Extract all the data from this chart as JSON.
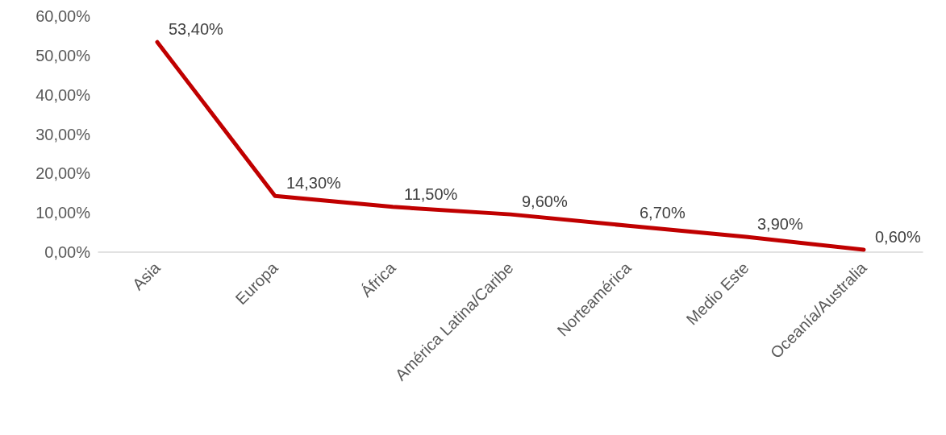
{
  "chart_data": {
    "type": "line",
    "categories": [
      "Asia",
      "Europa",
      "África",
      "América Latina/Caribe",
      "Norteamérica",
      "Medio Este",
      "Oceanía/Australia"
    ],
    "values": [
      53.4,
      14.3,
      11.5,
      9.6,
      6.7,
      3.9,
      0.6
    ],
    "value_labels": [
      "53,40%",
      "14,30%",
      "11,50%",
      "9,60%",
      "6,70%",
      "3,90%",
      "0,60%"
    ],
    "color": "#c00000",
    "ylim": [
      0,
      60
    ],
    "yticks": [
      {
        "value": 0,
        "label": "0,00%"
      },
      {
        "value": 10,
        "label": "10,00%"
      },
      {
        "value": 20,
        "label": "20,00%"
      },
      {
        "value": 30,
        "label": "30,00%"
      },
      {
        "value": 40,
        "label": "40,00%"
      },
      {
        "value": 50,
        "label": "50,00%"
      },
      {
        "value": 60,
        "label": "60,00%"
      }
    ],
    "grid": false,
    "marker": "none",
    "line_style": "solid"
  }
}
